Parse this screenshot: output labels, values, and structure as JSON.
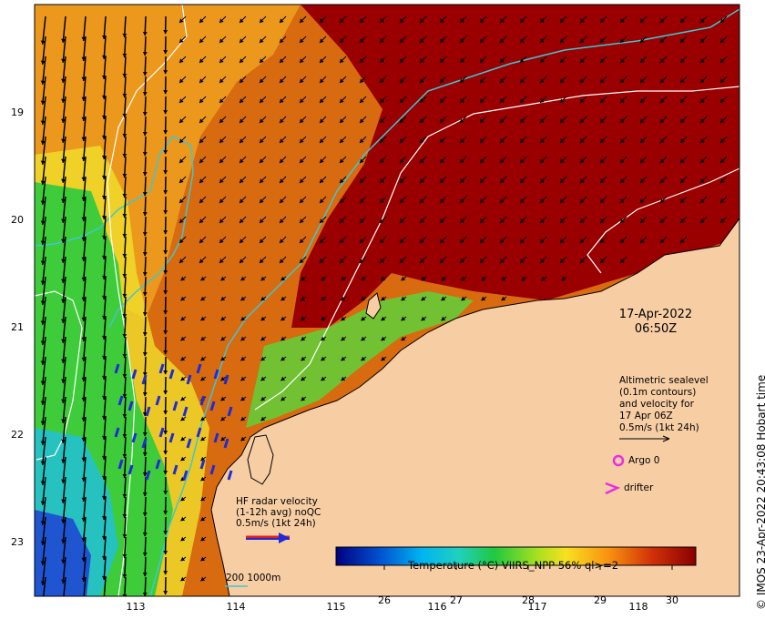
{
  "map": {
    "lat_ticks": [
      "19",
      "20",
      "21",
      "22",
      "23"
    ],
    "lon_ticks": [
      "113",
      "114",
      "115",
      "116",
      "117",
      "118"
    ],
    "datetime": [
      "17-Apr-2022",
      "06:50Z"
    ],
    "altimetry_legend": [
      "Altimetric sealevel",
      "(0.1m contours)",
      "and velocity for",
      "17 Apr 06Z",
      "0.5m/s (1kt 24h)"
    ],
    "argo_label": "Argo 0",
    "drifter_label": "drifter",
    "hf_radar_legend": [
      "HF radar velocity",
      "(1-12h avg) noQC",
      "0.5m/s (1kt 24h)"
    ],
    "colorbar_title": "Temperature (°C) VIIRS_NPP 56% ql>=2",
    "colorbar_ticks": [
      "26",
      "27",
      "28",
      "29",
      "30"
    ],
    "colorbar_range": [
      25.4,
      30.4
    ],
    "scale_label": "200  1000m",
    "copyright": "© IMOS 23-Apr-2022 20:43:08 Hobart time",
    "colors": {
      "land": "#f7cda4",
      "contour": "#3fc6d2",
      "argo": "#e62ee6",
      "hf_arrow": "#1e2bd8"
    }
  }
}
